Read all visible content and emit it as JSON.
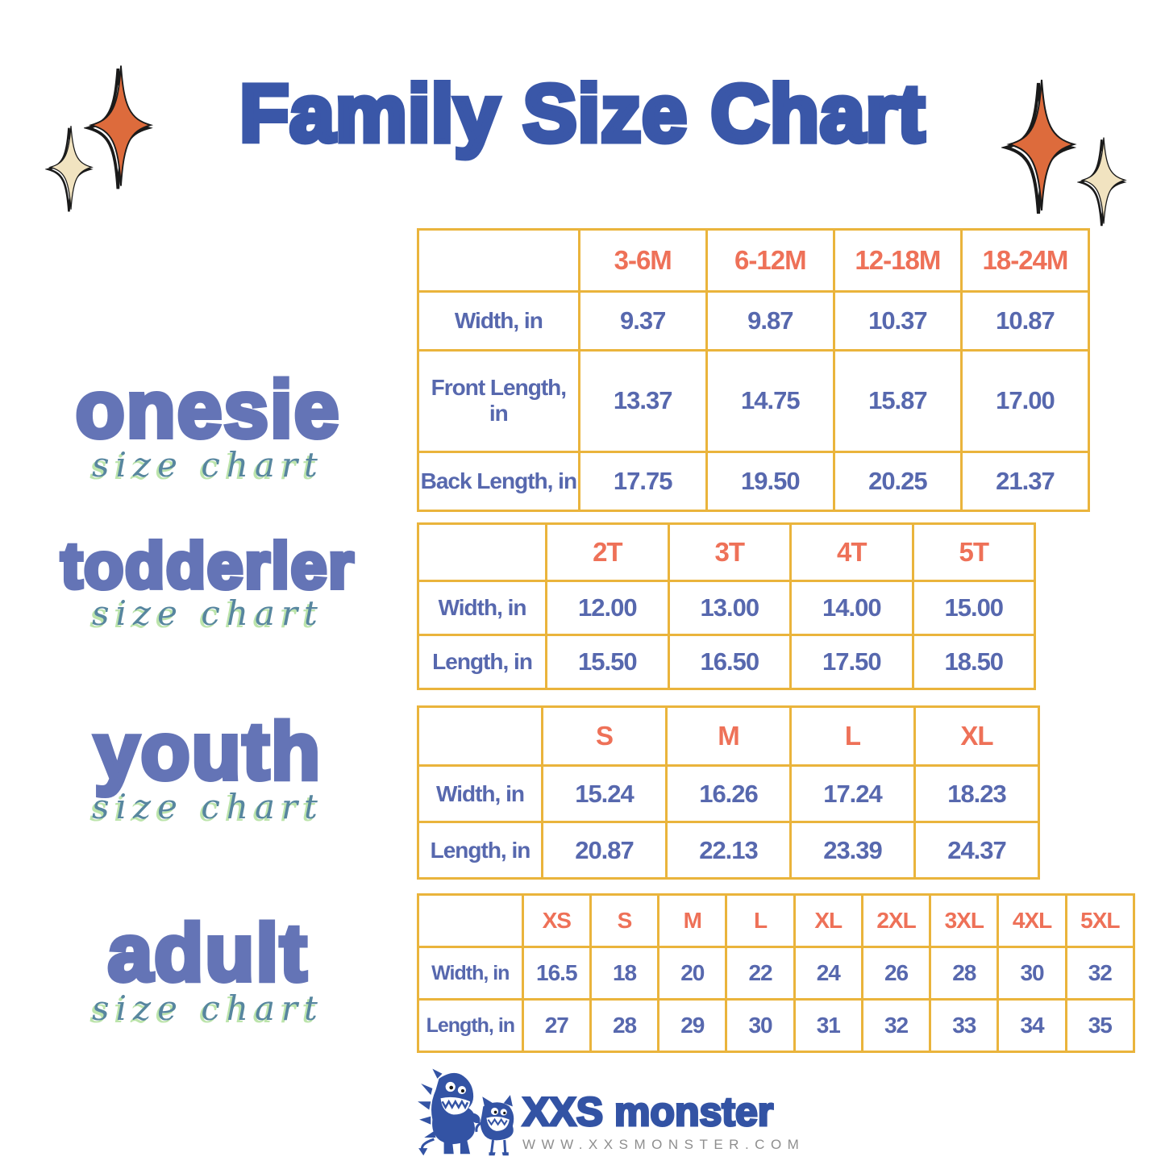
{
  "title": "Family Size Chart",
  "sections": [
    {
      "name": "onesie",
      "word": "onesie",
      "script": "size chart",
      "table": {
        "columns": [
          "3-6M",
          "6-12M",
          "12-18M",
          "18-24M"
        ],
        "rows": [
          {
            "label": "Width, in",
            "values": [
              "9.37",
              "9.87",
              "10.37",
              "10.87"
            ]
          },
          {
            "label": "Front Length, in",
            "values": [
              "13.37",
              "14.75",
              "15.87",
              "17.00"
            ]
          },
          {
            "label": "Back Length, in",
            "values": [
              "17.75",
              "19.50",
              "20.25",
              "21.37"
            ]
          }
        ]
      }
    },
    {
      "name": "toddler",
      "word": "todderler",
      "script": "size chart",
      "table": {
        "columns": [
          "2T",
          "3T",
          "4T",
          "5T"
        ],
        "rows": [
          {
            "label": "Width, in",
            "values": [
              "12.00",
              "13.00",
              "14.00",
              "15.00"
            ]
          },
          {
            "label": "Length, in",
            "values": [
              "15.50",
              "16.50",
              "17.50",
              "18.50"
            ]
          }
        ]
      }
    },
    {
      "name": "youth",
      "word": "youth",
      "script": "size chart",
      "table": {
        "columns": [
          "S",
          "M",
          "L",
          "XL"
        ],
        "rows": [
          {
            "label": "Width, in",
            "values": [
              "15.24",
              "16.26",
              "17.24",
              "18.23"
            ]
          },
          {
            "label": "Length, in",
            "values": [
              "20.87",
              "22.13",
              "23.39",
              "24.37"
            ]
          }
        ]
      }
    },
    {
      "name": "adult",
      "word": "adult",
      "script": "size chart",
      "table": {
        "columns": [
          "XS",
          "S",
          "M",
          "L",
          "XL",
          "2XL",
          "3XL",
          "4XL",
          "5XL"
        ],
        "rows": [
          {
            "label": "Width, in",
            "values": [
              "16.5",
              "18",
              "20",
              "22",
              "24",
              "26",
              "28",
              "30",
              "32"
            ]
          },
          {
            "label": "Length, in",
            "values": [
              "27",
              "28",
              "29",
              "30",
              "31",
              "32",
              "33",
              "34",
              "35"
            ]
          }
        ]
      }
    }
  ],
  "brand": {
    "name": "XXS monster",
    "url": "WWW.XXSMONSTER.COM"
  },
  "colors": {
    "title_blue": "#3A57A8",
    "word_blue": "#6474B6",
    "value_blue": "#5768AE",
    "header_coral": "#EE7158",
    "border_gold": "#EAB43C",
    "script_teal": "#57869F",
    "script_green": "#BCE4AB",
    "star_orange": "#DD6B3C",
    "star_cream": "#F1E3C0",
    "brand_blue": "#3353A4",
    "url_gray": "#8E8E8E"
  }
}
